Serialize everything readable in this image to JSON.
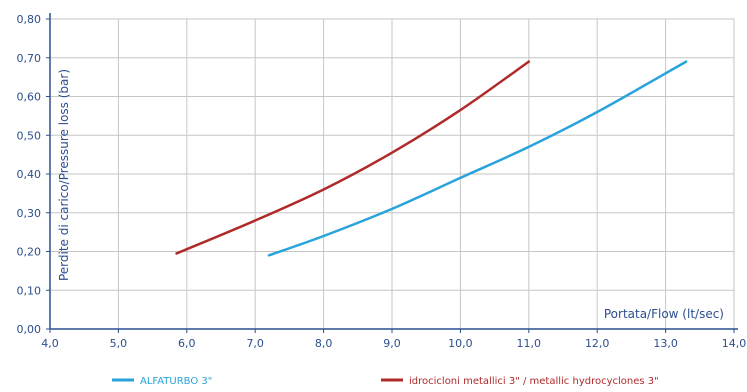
{
  "chart_data": {
    "type": "line",
    "xlabel": "Portata/Flow (lt/sec)",
    "ylabel": "Perdite di carico/Pressure loss (bar)",
    "xlim": [
      4.0,
      14.0
    ],
    "ylim": [
      0.0,
      0.8
    ],
    "x_ticks": [
      "4,0",
      "5,0",
      "6,0",
      "7,0",
      "8,0",
      "9,0",
      "10,0",
      "11,0",
      "12,0",
      "13,0",
      "14,0"
    ],
    "y_ticks": [
      "0,00",
      "0,10",
      "0,20",
      "0,30",
      "0,40",
      "0,50",
      "0,60",
      "0,70",
      "0,80"
    ],
    "grid": true,
    "legend_position": "bottom",
    "series": [
      {
        "name": "ALFATURBO 3\"",
        "color": "#29a3dc",
        "x": [
          7.2,
          8.0,
          9.0,
          10.0,
          11.0,
          12.0,
          13.3
        ],
        "y": [
          0.19,
          0.24,
          0.31,
          0.39,
          0.47,
          0.56,
          0.69
        ]
      },
      {
        "name": "idrocicloni metallici 3\" / metallic hydrocyclones 3\"",
        "color": "#b02a2a",
        "x": [
          5.85,
          7.0,
          8.0,
          9.0,
          10.0,
          11.0
        ],
        "y": [
          0.195,
          0.28,
          0.36,
          0.455,
          0.565,
          0.69
        ]
      }
    ]
  }
}
